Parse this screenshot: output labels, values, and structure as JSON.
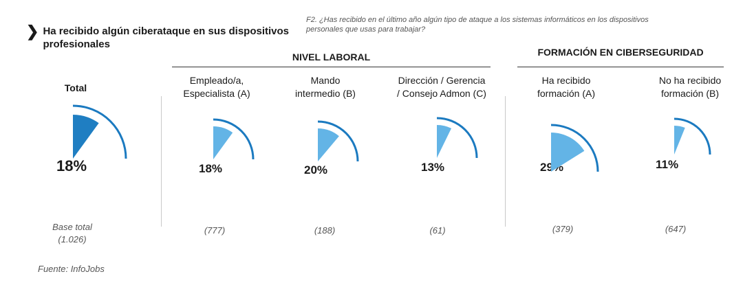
{
  "header": {
    "title": "Ha recibido algún ciberataque en sus dispositivos profesionales",
    "question": "F2. ¿Has recibido en el último año algún tipo de ataque a los sistemas informáticos en los dispositivos personales que usas para trabajar?"
  },
  "groups": {
    "nivel_laboral": "NIVEL LABORAL",
    "formacion": "FORMACIÓN EN CIBERSEGURIDAD"
  },
  "total": {
    "label": "Total",
    "base_label": "Base total",
    "base_value": "(1.026)"
  },
  "source": "Fuente: InfoJobs",
  "colors": {
    "total_fill": "#1f7ec2",
    "fill": "#63b4e6",
    "arc": "#1b7ac0"
  },
  "chart_data": {
    "type": "pie",
    "categories": [
      "Total",
      "Empleado/a, Especialista (A)",
      "Mando intermedio (B)",
      "Dirección / Gerencia / Consejo Admon (C)",
      "Ha recibido formación (A)",
      "No ha recibido formación (B)"
    ],
    "category_lines": [
      [
        "Empleado/a,",
        "Especialista (A)"
      ],
      [
        "Mando",
        "intermedio (B)"
      ],
      [
        "Dirección / Gerencia",
        "/ Consejo Admon (C)"
      ],
      [
        "Ha recibido",
        "formación (A)"
      ],
      [
        "No ha recibido",
        "formación (B)"
      ]
    ],
    "values": [
      18,
      18,
      20,
      13,
      29,
      11
    ],
    "value_labels": [
      "18%",
      "18%",
      "20%",
      "13%",
      "29%",
      "11%"
    ],
    "bases": [
      "(1.026)",
      "(777)",
      "(188)",
      "(61)",
      "(379)",
      "(647)"
    ],
    "unit": "%"
  }
}
